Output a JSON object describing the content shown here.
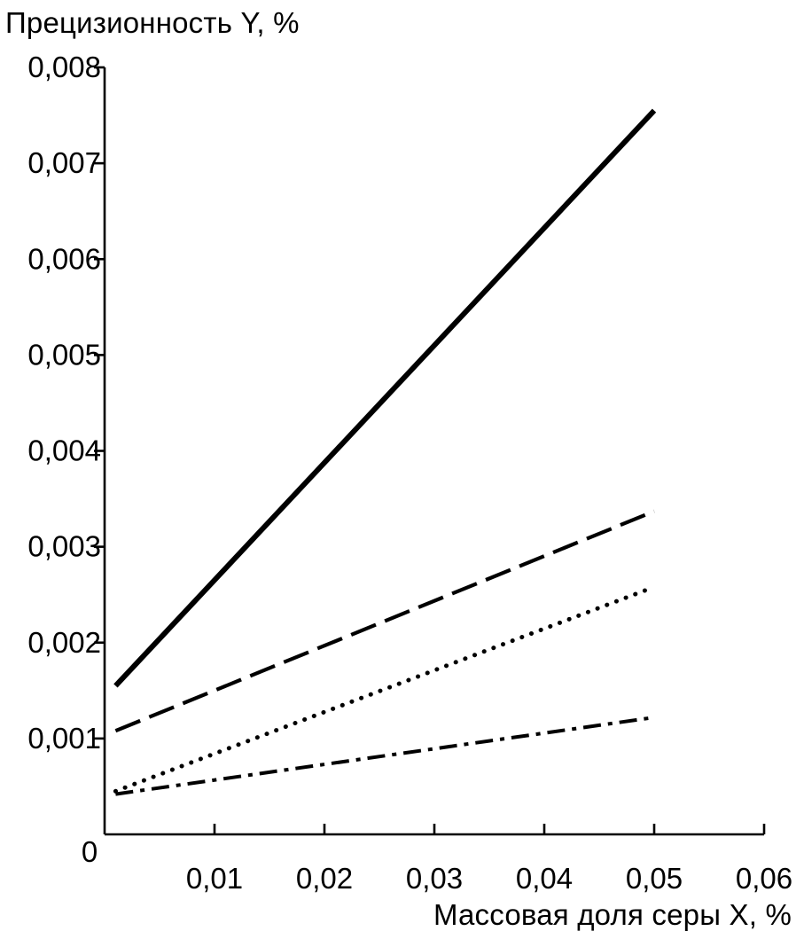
{
  "chart_data": {
    "type": "line",
    "ylabel": "Прецизионность Y, %",
    "xlabel": "Массовая доля серы X, %",
    "origin_label": "0",
    "xlim": [
      0,
      0.06
    ],
    "ylim": [
      0,
      0.008
    ],
    "x_ticks": [
      0.01,
      0.02,
      0.03,
      0.04,
      0.05,
      0.06
    ],
    "x_tick_labels": [
      "0,01",
      "0,02",
      "0,03",
      "0,04",
      "0,05",
      "0,06"
    ],
    "y_ticks": [
      0.001,
      0.002,
      0.003,
      0.004,
      0.005,
      0.006,
      0.007,
      0.008
    ],
    "y_tick_labels": [
      "0,001",
      "0,002",
      "0,003",
      "0,004",
      "0,005",
      "0,006",
      "0,007",
      "0,008"
    ],
    "grid": false,
    "legend": "none",
    "series": [
      {
        "style": "solid",
        "x": [
          0.001,
          0.05
        ],
        "y": [
          0.00155,
          0.00755
        ]
      },
      {
        "style": "dashed",
        "x": [
          0.001,
          0.05
        ],
        "y": [
          0.00108,
          0.00337
        ]
      },
      {
        "style": "dotted",
        "x": [
          0.001,
          0.05
        ],
        "y": [
          0.00045,
          0.00258
        ]
      },
      {
        "style": "dash-dot",
        "x": [
          0.001,
          0.05
        ],
        "y": [
          0.00042,
          0.00122
        ]
      }
    ],
    "colors": {
      "line": "#000000",
      "background": "#ffffff"
    }
  }
}
